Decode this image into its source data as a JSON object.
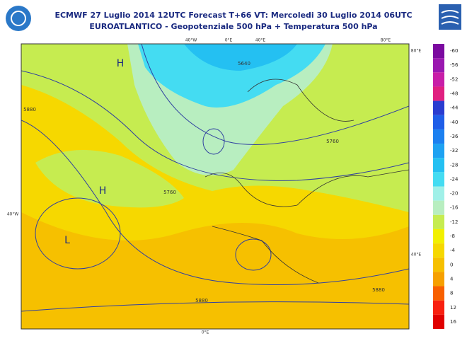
{
  "header": {
    "title": "ECMWF 27 Luglio 2014 12UTC Forecast T+66 VT: Mercoledi 30 Luglio 2014 06UTC",
    "subtitle": "EUROATLANTICO - Geopotenziale 500 hPa + Temperatura 500 hPa"
  },
  "map": {
    "labels": [
      "H",
      "H",
      "L",
      "5880",
      "5760",
      "5640",
      "5760",
      "5880",
      "5880",
      "40°W",
      "0°E",
      "40°E",
      "80°E",
      "80°E",
      "40°W",
      "40°E",
      "0°E"
    ]
  },
  "legend": {
    "items": [
      {
        "value": -60,
        "color": "#7b0aa0"
      },
      {
        "value": -56,
        "color": "#9a18b0"
      },
      {
        "value": -52,
        "color": "#c81ea8"
      },
      {
        "value": -48,
        "color": "#e02080"
      },
      {
        "value": -44,
        "color": "#2a3cd0"
      },
      {
        "value": -40,
        "color": "#1f5ee8"
      },
      {
        "value": -36,
        "color": "#1c80f0"
      },
      {
        "value": -32,
        "color": "#1ea2f2"
      },
      {
        "value": -28,
        "color": "#24c0f2"
      },
      {
        "value": -24,
        "color": "#44dcf2"
      },
      {
        "value": -20,
        "color": "#a0f0e8"
      },
      {
        "value": -16,
        "color": "#b8eec0"
      },
      {
        "value": -12,
        "color": "#c6ec50"
      },
      {
        "value": -8,
        "color": "#f2f000"
      },
      {
        "value": -4,
        "color": "#f6d800"
      },
      {
        "value": 0,
        "color": "#f6c000"
      },
      {
        "value": 4,
        "color": "#f6a000"
      },
      {
        "value": 8,
        "color": "#f86000"
      },
      {
        "value": 12,
        "color": "#f82010"
      },
      {
        "value": 16,
        "color": "#e00000"
      }
    ]
  }
}
